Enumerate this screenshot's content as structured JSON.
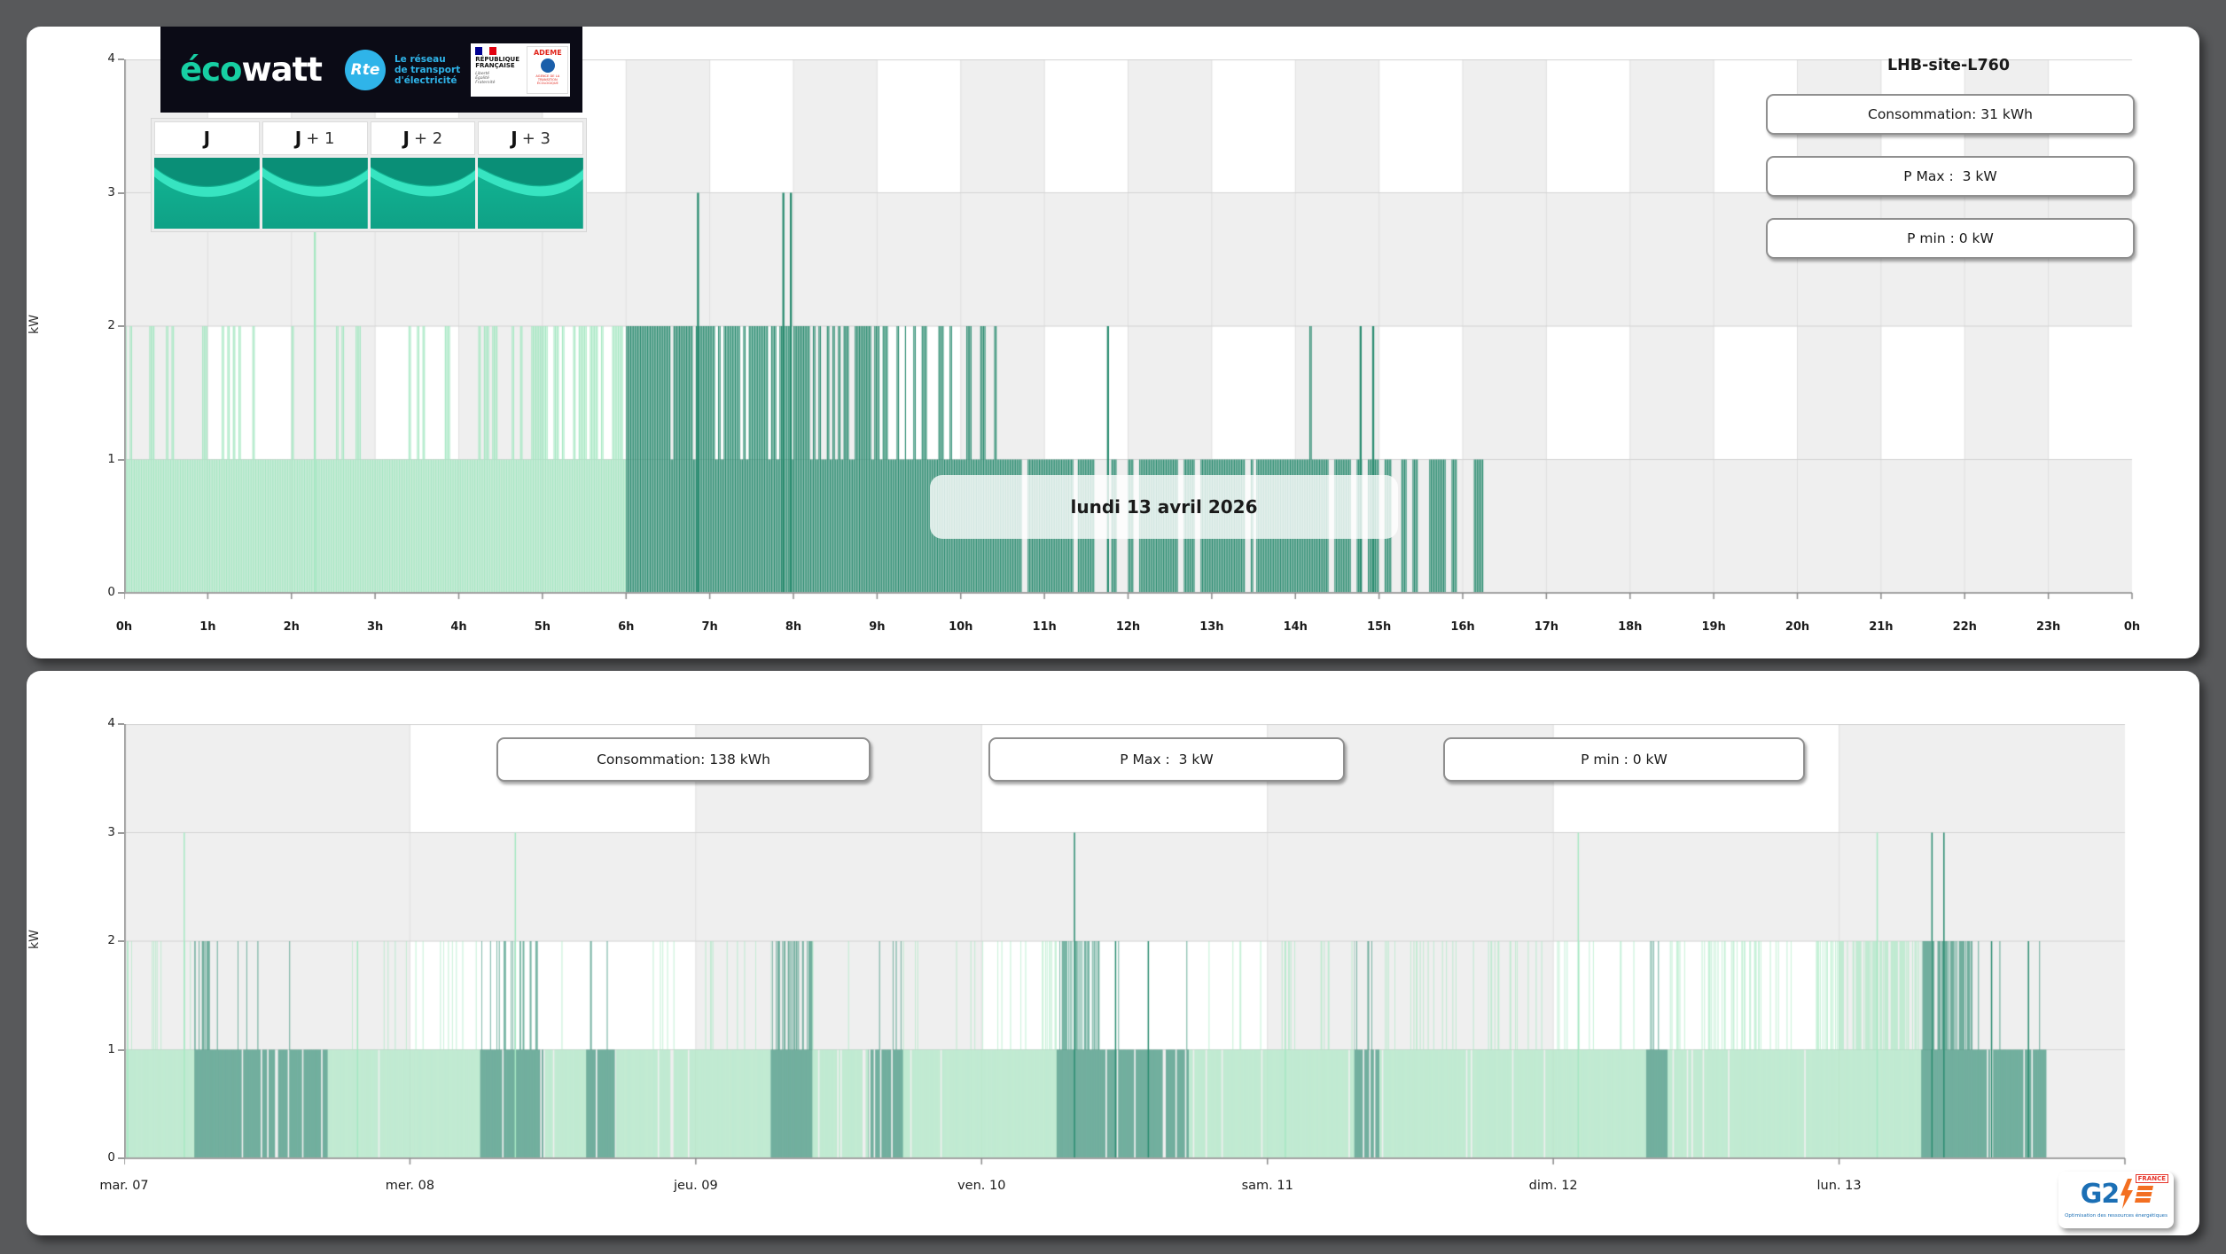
{
  "palette": {
    "background": "#58595B",
    "panel": "#FFFFFF",
    "bar_light": "#A6E8C3",
    "bar_dark": "#2A8C70",
    "band_grey": "#EFEFEF",
    "band_white": "#FFFFFF",
    "grid_vertical": "#E0E0E0",
    "grid_horizontal": "#D4D4D4",
    "axis_line": "#A2A2A2",
    "tick_mark": "#8A8A8A",
    "ecowatt_bg": "#0B0B16",
    "ecowatt_green": "#17CFA3",
    "rte_blue": "#2FB4E9",
    "thumb_teal": "#12B795",
    "thumb_teal_dark": "#0A8F77",
    "thumb_teal_light": "#3BE8C6",
    "g2e_blue": "#1B6FB5",
    "g2e_orange": "#F36F21",
    "g2e_red": "#E63329",
    "flag_blue": "#000091",
    "flag_white": "#FFFFFF",
    "flag_red": "#E1000F"
  },
  "header": {
    "ecowatt_eco": "éco",
    "ecowatt_watt": "watt",
    "rte_abbr": "Rte",
    "rte_tagline": [
      "Le réseau",
      "de transport",
      "d'électricité"
    ],
    "republique": [
      "RÉPUBLIQUE",
      "FRANÇAISE"
    ],
    "motto": [
      "Liberté",
      "Égalité",
      "Fraternité"
    ],
    "ademe": "ADEME",
    "ademe_sub": "AGENCE DE LA TRANSITION ÉCOLOGIQUE"
  },
  "tabs": {
    "items": [
      {
        "pre": "J",
        "suf": ""
      },
      {
        "pre": "J",
        "suf": "+ 1"
      },
      {
        "pre": "J",
        "suf": "+ 2"
      },
      {
        "pre": "J",
        "suf": "+ 3"
      }
    ]
  },
  "top_panel": {
    "site_title": "LHB-site-L760",
    "stats": [
      {
        "label": "Consommation: 31 kWh"
      },
      {
        "label": "P Max :  3 kW"
      },
      {
        "label": "P min : 0 kW"
      }
    ],
    "date_label": "lundi 13 avril 2026"
  },
  "bottom_panel": {
    "stats": [
      {
        "label": "Consommation: 138 kWh"
      },
      {
        "label": "P Max :  3 kW"
      },
      {
        "label": "P min : 0 kW"
      }
    ]
  },
  "footer_logo": {
    "g2": "G2",
    "country": "FRANCE",
    "caption": "Optimisation des ressources énergétiques"
  },
  "chart_data": [
    {
      "id": "top",
      "type": "bar",
      "ylabel": "kW",
      "ylim": [
        0,
        4
      ],
      "y_ticks": [
        "0",
        "1",
        "2",
        "3",
        "4"
      ],
      "x_unit": "hour",
      "hours_span": 24,
      "columns": 24,
      "x_ticks": [
        "0h",
        "1h",
        "2h",
        "3h",
        "4h",
        "5h",
        "6h",
        "7h",
        "8h",
        "9h",
        "10h",
        "11h",
        "12h",
        "13h",
        "14h",
        "15h",
        "16h",
        "17h",
        "18h",
        "19h",
        "20h",
        "21h",
        "22h",
        "23h",
        "0h"
      ],
      "resolution_minutes": 1,
      "banding": {
        "solid_grey_rows": [
          [
            0,
            1
          ],
          [
            2,
            3
          ]
        ],
        "striped_rows": [
          [
            1,
            2
          ],
          [
            3,
            4
          ]
        ],
        "white_on": "odd_columns"
      },
      "data_end_hour": 16.25,
      "segments": [
        [
          0,
          4.2,
          "L",
          1,
          0.2
        ],
        [
          4.2,
          6.0,
          "L",
          1,
          0.45
        ],
        [
          6.0,
          8.2,
          "D",
          1,
          0.85
        ],
        [
          8.2,
          9.35,
          "D",
          1,
          0.55
        ],
        [
          9.35,
          10.3,
          "D",
          0.97,
          0.22
        ],
        [
          10.3,
          11.35,
          "D",
          0.93,
          0.02
        ],
        [
          11.35,
          13.5,
          "D",
          0.6,
          0.01
        ],
        [
          13.5,
          15.15,
          "D",
          0.78,
          0.01
        ],
        [
          15.15,
          16.25,
          "D",
          0.52,
          0.0
        ]
      ],
      "spikes": [
        [
          2.28,
          3,
          "L"
        ],
        [
          6.86,
          3,
          "D"
        ],
        [
          7.88,
          3,
          "D"
        ],
        [
          7.97,
          3,
          "D"
        ],
        [
          11.76,
          2,
          "D"
        ],
        [
          14.78,
          2,
          "D"
        ],
        [
          14.93,
          2,
          "D"
        ]
      ]
    },
    {
      "id": "bottom",
      "type": "bar",
      "ylabel": "kW",
      "ylim": [
        0,
        4
      ],
      "y_ticks": [
        "0",
        "1",
        "2",
        "3",
        "4"
      ],
      "x_unit": "day",
      "hours_span": 168,
      "columns": 7,
      "x_ticks": [
        "mar. 07",
        "mer. 08",
        "jeu. 09",
        "ven. 10",
        "sam. 11",
        "dim. 12",
        "lun. 13"
      ],
      "resolution_minutes": 1,
      "banding": {
        "solid_grey_rows": [
          [
            0,
            1
          ],
          [
            2,
            3
          ]
        ],
        "striped_rows": [
          [
            1,
            2
          ],
          [
            3,
            4
          ]
        ],
        "white_on": "odd_columns"
      },
      "data_end_hour": 161.4,
      "segments": [
        [
          0,
          5.9,
          "L",
          1,
          0.1
        ],
        [
          5.9,
          7.3,
          "D",
          1,
          0.45
        ],
        [
          7.3,
          9.5,
          "D",
          0.97,
          0.08
        ],
        [
          9.5,
          17.1,
          "D",
          0.85,
          0.03
        ],
        [
          17.1,
          24,
          "L",
          0.97,
          0.04
        ],
        [
          24,
          29.9,
          "L",
          1,
          0.12
        ],
        [
          29.9,
          35.2,
          "D",
          0.95,
          0.3
        ],
        [
          35.2,
          38.8,
          "L",
          0.9,
          0.05
        ],
        [
          38.8,
          41.3,
          "D",
          0.9,
          0.05
        ],
        [
          41.3,
          48,
          "L",
          0.95,
          0.05
        ],
        [
          48,
          54.3,
          "L",
          1,
          0.1
        ],
        [
          54.3,
          57.8,
          "D",
          1,
          0.4
        ],
        [
          57.8,
          62.5,
          "L",
          0.9,
          0.08
        ],
        [
          62.5,
          65.4,
          "D",
          0.85,
          0.05
        ],
        [
          65.4,
          72,
          "L",
          0.95,
          0.06
        ],
        [
          72,
          76.6,
          "L",
          1,
          0.1
        ],
        [
          76.6,
          78.3,
          "L",
          1,
          0.5
        ],
        [
          78.3,
          81.9,
          "D",
          1,
          0.55
        ],
        [
          81.9,
          89.4,
          "D",
          0.85,
          0.03
        ],
        [
          89.4,
          96,
          "L",
          0.95,
          0.04
        ],
        [
          96,
          103.3,
          "L",
          0.97,
          0.08
        ],
        [
          103.3,
          105.4,
          "D",
          0.9,
          0.25
        ],
        [
          105.4,
          114,
          "L",
          0.95,
          0.08
        ],
        [
          114,
          117,
          "L",
          0.95,
          0.25
        ],
        [
          117,
          120,
          "L",
          0.97,
          0.1
        ],
        [
          120,
          127.8,
          "L",
          0.97,
          0.08
        ],
        [
          127.8,
          129.6,
          "D",
          0.9,
          0.2
        ],
        [
          129.6,
          137.5,
          "L",
          0.9,
          0.35
        ],
        [
          137.5,
          141.8,
          "L",
          0.95,
          0.1
        ],
        [
          141.8,
          144,
          "L",
          1,
          0.5
        ],
        [
          144,
          150.9,
          "L",
          1,
          0.65
        ],
        [
          150.9,
          155.2,
          "D",
          1,
          0.75
        ],
        [
          155.2,
          161.4,
          "D",
          0.9,
          0.04
        ]
      ],
      "spikes": [
        [
          0.3,
          2,
          "L"
        ],
        [
          5.05,
          3,
          "L"
        ],
        [
          19.6,
          2,
          "L"
        ],
        [
          32.85,
          3,
          "L"
        ],
        [
          79.8,
          3,
          "D"
        ],
        [
          83.25,
          2,
          "D"
        ],
        [
          86.0,
          2,
          "D"
        ],
        [
          97.5,
          2,
          "L"
        ],
        [
          122.1,
          3,
          "L"
        ],
        [
          147.2,
          3,
          "L"
        ],
        [
          151.8,
          3,
          "D"
        ],
        [
          152.8,
          3,
          "D"
        ],
        [
          156.8,
          2,
          "D"
        ],
        [
          159.9,
          2,
          "D"
        ]
      ]
    }
  ]
}
